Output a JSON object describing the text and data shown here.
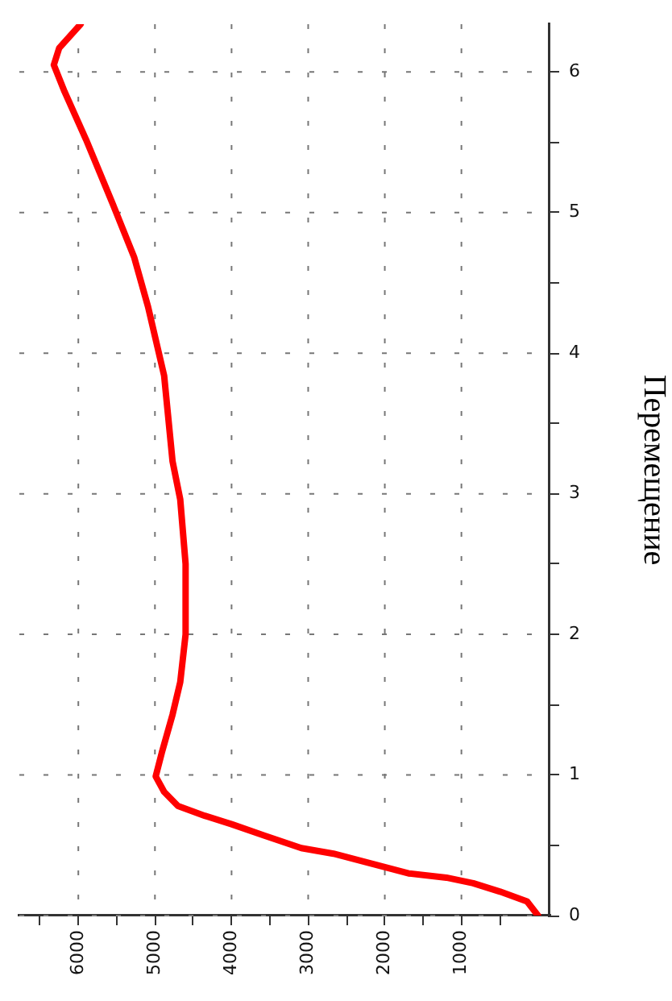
{
  "chart_data": {
    "type": "line",
    "y2label": "Перемещение",
    "x": [
      0,
      143,
      495,
      846,
      1196,
      1690,
      2110,
      2670,
      3090,
      3580,
      4000,
      4350,
      4700,
      4880,
      4990,
      4910,
      4770,
      4670,
      4600,
      4600,
      4670,
      4770,
      4880,
      5090,
      5270,
      5550,
      5900,
      6180,
      6320,
      6250,
      5970
    ],
    "series": [
      {
        "color": "#ff0000",
        "axis": "y2",
        "values": [
          0,
          0.1,
          0.17,
          0.23,
          0.27,
          0.3,
          0.36,
          0.44,
          0.48,
          0.57,
          0.65,
          0.71,
          0.78,
          0.88,
          0.99,
          1.16,
          1.43,
          1.66,
          2.0,
          2.5,
          2.96,
          3.23,
          3.84,
          4.33,
          4.68,
          5.06,
          5.52,
          5.86,
          6.05,
          6.17,
          6.34
        ]
      }
    ],
    "xlim": [
      6770,
      -150
    ],
    "xticks": [
      {
        "value": 6500,
        "label": null
      },
      6000,
      {
        "value": 5500,
        "label": null
      },
      5000,
      {
        "value": 4500,
        "label": null
      },
      4000,
      {
        "value": 3500,
        "label": null
      },
      3000,
      {
        "value": 2500,
        "label": null
      },
      2000,
      {
        "value": 1500,
        "label": null
      },
      1000,
      {
        "value": 500,
        "label": null
      }
    ],
    "y2lim": [
      0,
      6.34
    ],
    "y2ticks": [
      0,
      {
        "value": 0.5,
        "label": null
      },
      1,
      {
        "value": 1.5,
        "label": null
      },
      2,
      {
        "value": 2.5,
        "label": null
      },
      3,
      {
        "value": 3.5,
        "label": null
      },
      4,
      {
        "value": 4.5,
        "label": null
      },
      5,
      {
        "value": 5.5,
        "label": null
      },
      6
    ],
    "grid": true,
    "legend": false,
    "marker": "none",
    "line_style": "solid"
  }
}
